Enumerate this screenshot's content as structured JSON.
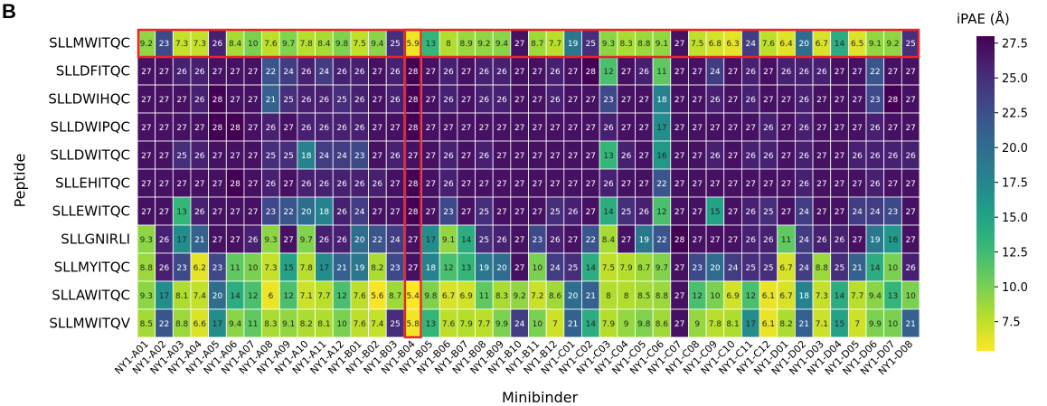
{
  "panel_label": "B",
  "chart_data": {
    "type": "heatmap",
    "title": "",
    "xlabel": "Minibinder",
    "ylabel": "Peptide",
    "colorbar": {
      "label": "iPAE (Å)",
      "ticks": [
        "7.5",
        "10.0",
        "12.5",
        "15.0",
        "17.5",
        "20.0",
        "22.5",
        "25.0",
        "27.5"
      ],
      "range": [
        5.4,
        28
      ],
      "colormap": "viridis_r"
    },
    "highlight_color": "#e8262b",
    "highlighted_row": "SLLMWITQC",
    "highlighted_column": "NY1-B04",
    "columns": [
      "NY1-A01",
      "NY1-A02",
      "NY1-A03",
      "NY1-A04",
      "NY1-A05",
      "NY1-A06",
      "NY1-A07",
      "NY1-A08",
      "NY1-A09",
      "NY1-A10",
      "NY1-A11",
      "NY1-A12",
      "NY1-B01",
      "NY1-B02",
      "NY1-B03",
      "NY1-B04",
      "NY1-B05",
      "NY1-B06",
      "NY1-B07",
      "NY1-B08",
      "NY1-B09",
      "NY1-B10",
      "NY1-B11",
      "NY1-B12",
      "NY1-C01",
      "NY1-C02",
      "NY1-C03",
      "NY1-C04",
      "NY1-C05",
      "NY1-C06",
      "NY1-C07",
      "NY1-C08",
      "NY1-C09",
      "NY1-C10",
      "NY1-C11",
      "NY1-C12",
      "NY1-D01",
      "NY1-D02",
      "NY1-D03",
      "NY1-D04",
      "NY1-D05",
      "NY1-D06",
      "NY1-D07",
      "NY1-D08"
    ],
    "rows": [
      "SLLMWITQC",
      "SLLDFITQC",
      "SLLDWIHQC",
      "SLLDWIPQC",
      "SLLDWITQC",
      "SLLEHITQC",
      "SLLEWITQC",
      "SLLGNIRLI",
      "SLLMYITQC",
      "SLLAWITQC",
      "SLLMWITQV"
    ],
    "values": [
      [
        "9.2",
        "23",
        "7.3",
        "7.3",
        "26",
        "8.4",
        "10",
        "7.6",
        "9.7",
        "7.8",
        "8.4",
        "9.8",
        "7.5",
        "9.4",
        "25",
        "5.9",
        "13",
        "8",
        "8.9",
        "9.2",
        "9.4",
        "27",
        "8.7",
        "7.7",
        "19",
        "25",
        "9.3",
        "8.3",
        "8.8",
        "9.1",
        "27",
        "7.5",
        "6.8",
        "6.3",
        "24",
        "7.6",
        "6.4",
        "20",
        "6.7",
        "14",
        "6.5",
        "9.1",
        "9.2",
        "25"
      ],
      [
        "27",
        "27",
        "26",
        "26",
        "27",
        "27",
        "27",
        "22",
        "24",
        "26",
        "24",
        "26",
        "26",
        "27",
        "26",
        "28",
        "27",
        "26",
        "27",
        "26",
        "26",
        "27",
        "27",
        "26",
        "27",
        "28",
        "12",
        "27",
        "26",
        "11",
        "27",
        "27",
        "24",
        "27",
        "26",
        "27",
        "26",
        "26",
        "26",
        "27",
        "27",
        "22",
        "27",
        "27"
      ],
      [
        "27",
        "27",
        "27",
        "26",
        "28",
        "27",
        "27",
        "21",
        "25",
        "26",
        "26",
        "25",
        "26",
        "27",
        "26",
        "28",
        "27",
        "26",
        "27",
        "26",
        "26",
        "27",
        "27",
        "26",
        "27",
        "27",
        "23",
        "27",
        "27",
        "18",
        "27",
        "27",
        "26",
        "27",
        "26",
        "27",
        "27",
        "26",
        "27",
        "27",
        "27",
        "23",
        "28",
        "27"
      ],
      [
        "27",
        "27",
        "27",
        "27",
        "28",
        "28",
        "27",
        "26",
        "27",
        "26",
        "26",
        "26",
        "26",
        "27",
        "27",
        "28",
        "27",
        "27",
        "27",
        "27",
        "27",
        "27",
        "27",
        "27",
        "27",
        "27",
        "26",
        "27",
        "27",
        "17",
        "27",
        "27",
        "27",
        "27",
        "27",
        "26",
        "27",
        "26",
        "27",
        "27",
        "27",
        "26",
        "27",
        "27"
      ],
      [
        "27",
        "27",
        "25",
        "26",
        "27",
        "27",
        "27",
        "25",
        "25",
        "18",
        "24",
        "24",
        "23",
        "27",
        "26",
        "27",
        "27",
        "26",
        "27",
        "26",
        "27",
        "27",
        "27",
        "27",
        "27",
        "27",
        "13",
        "26",
        "27",
        "16",
        "27",
        "27",
        "26",
        "27",
        "26",
        "26",
        "27",
        "26",
        "27",
        "27",
        "26",
        "26",
        "26",
        "26"
      ],
      [
        "27",
        "27",
        "27",
        "27",
        "27",
        "28",
        "27",
        "26",
        "27",
        "26",
        "26",
        "26",
        "26",
        "26",
        "27",
        "28",
        "27",
        "26",
        "27",
        "27",
        "27",
        "27",
        "27",
        "27",
        "27",
        "27",
        "26",
        "27",
        "27",
        "22",
        "27",
        "27",
        "27",
        "27",
        "27",
        "27",
        "27",
        "26",
        "27",
        "27",
        "27",
        "26",
        "27",
        "27"
      ],
      [
        "27",
        "27",
        "13",
        "26",
        "27",
        "27",
        "27",
        "23",
        "22",
        "20",
        "18",
        "26",
        "24",
        "27",
        "27",
        "28",
        "27",
        "23",
        "27",
        "25",
        "27",
        "27",
        "27",
        "25",
        "26",
        "27",
        "14",
        "25",
        "26",
        "12",
        "27",
        "27",
        "15",
        "27",
        "26",
        "25",
        "27",
        "24",
        "27",
        "27",
        "24",
        "24",
        "23",
        "27"
      ],
      [
        "9.3",
        "26",
        "17",
        "21",
        "27",
        "27",
        "26",
        "9.3",
        "27",
        "9.7",
        "26",
        "26",
        "20",
        "22",
        "24",
        "27",
        "17",
        "9.1",
        "14",
        "25",
        "26",
        "27",
        "23",
        "26",
        "27",
        "22",
        "8.4",
        "27",
        "19",
        "22",
        "28",
        "27",
        "27",
        "27",
        "26",
        "26",
        "11",
        "24",
        "26",
        "26",
        "27",
        "19",
        "16",
        "27"
      ],
      [
        "8.8",
        "26",
        "23",
        "6.2",
        "23",
        "11",
        "10",
        "7.3",
        "15",
        "7.8",
        "17",
        "21",
        "19",
        "8.2",
        "23",
        "27",
        "18",
        "12",
        "13",
        "19",
        "20",
        "27",
        "10",
        "24",
        "25",
        "14",
        "7.5",
        "7.9",
        "8.7",
        "9.7",
        "27",
        "23",
        "20",
        "24",
        "25",
        "25",
        "6.7",
        "24",
        "8.8",
        "25",
        "21",
        "14",
        "10",
        "26"
      ],
      [
        "9.3",
        "17",
        "8.1",
        "7.4",
        "20",
        "14",
        "12",
        "6",
        "12",
        "7.1",
        "7.7",
        "12",
        "7.6",
        "5.6",
        "8.7",
        "5.4",
        "9.8",
        "6.7",
        "6.9",
        "11",
        "8.3",
        "9.2",
        "7.2",
        "8.6",
        "20",
        "21",
        "8",
        "8",
        "8.5",
        "8.8",
        "27",
        "12",
        "10",
        "6.9",
        "12",
        "6.1",
        "6.7",
        "18",
        "7.3",
        "14",
        "7.7",
        "9.4",
        "13",
        "10"
      ],
      [
        "8.5",
        "22",
        "8.8",
        "6.6",
        "17",
        "9.4",
        "11",
        "8.3",
        "9.1",
        "8.2",
        "8.1",
        "10",
        "7.6",
        "7.4",
        "25",
        "5.8",
        "13",
        "7.6",
        "7.9",
        "7.7",
        "9.9",
        "24",
        "10",
        "7",
        "21",
        "14",
        "7.9",
        "9",
        "9.8",
        "8.6",
        "27",
        "9",
        "7.8",
        "8.1",
        "17",
        "6.1",
        "8.2",
        "21",
        "7.1",
        "15",
        "7",
        "9.9",
        "10",
        "21"
      ]
    ]
  }
}
